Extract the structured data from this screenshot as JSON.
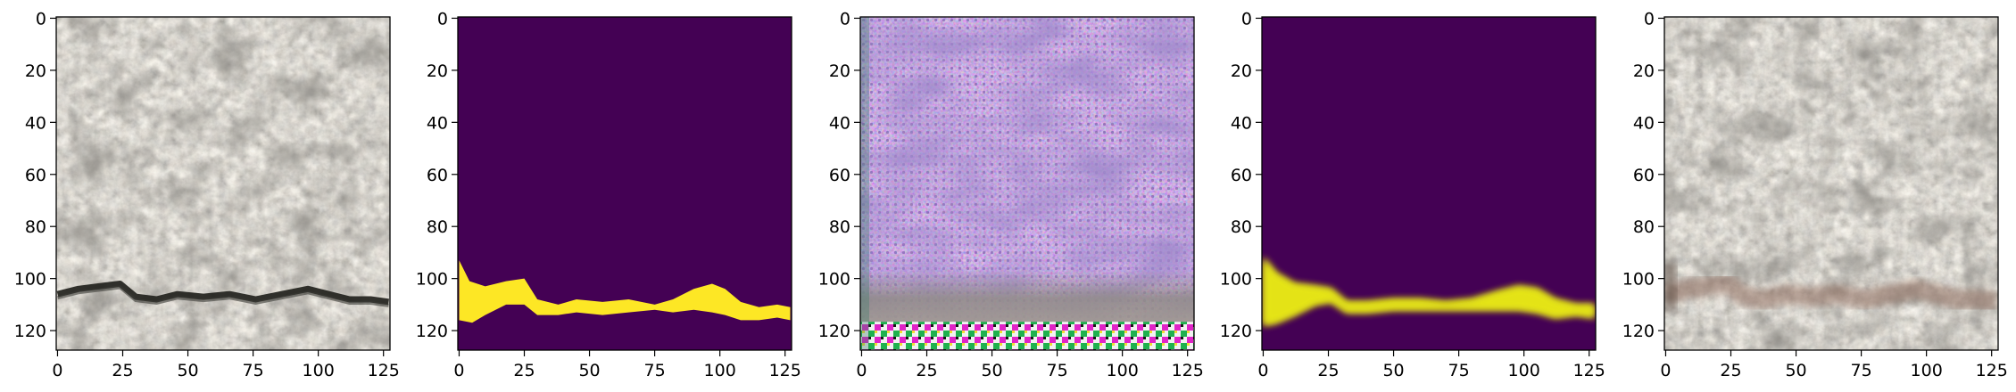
{
  "chart_data": [
    {
      "type": "image",
      "content": "grey concrete surface texture with a dark horizontal crack near y~107",
      "xlim": [
        0,
        127
      ],
      "ylim": [
        127,
        0
      ],
      "x_ticks": [
        0,
        25,
        50,
        75,
        100,
        125
      ],
      "y_ticks": [
        0,
        20,
        40,
        60,
        80,
        100,
        120
      ]
    },
    {
      "type": "heatmap",
      "content": "binary crack mask (yellow crack on purple background)",
      "xlim": [
        0,
        127
      ],
      "ylim": [
        127,
        0
      ],
      "x_ticks": [
        0,
        25,
        50,
        75,
        100,
        125
      ],
      "y_ticks": [
        0,
        20,
        40,
        60,
        80,
        100,
        120
      ],
      "background_color": "#440154",
      "crack_color": "#fde725",
      "crack_upper": [
        [
          0,
          93
        ],
        [
          4,
          101
        ],
        [
          10,
          103
        ],
        [
          18,
          101
        ],
        [
          25,
          100
        ],
        [
          30,
          108
        ],
        [
          38,
          110
        ],
        [
          45,
          108
        ],
        [
          55,
          109
        ],
        [
          65,
          108
        ],
        [
          75,
          110
        ],
        [
          82,
          108
        ],
        [
          90,
          104
        ],
        [
          97,
          102
        ],
        [
          102,
          104
        ],
        [
          108,
          109
        ],
        [
          115,
          111
        ],
        [
          122,
          110
        ],
        [
          127,
          111
        ]
      ],
      "crack_lower": [
        [
          0,
          116
        ],
        [
          5,
          117
        ],
        [
          10,
          114
        ],
        [
          18,
          110
        ],
        [
          25,
          110
        ],
        [
          30,
          114
        ],
        [
          38,
          114
        ],
        [
          45,
          113
        ],
        [
          55,
          114
        ],
        [
          65,
          113
        ],
        [
          75,
          112
        ],
        [
          82,
          113
        ],
        [
          90,
          112
        ],
        [
          97,
          113
        ],
        [
          102,
          114
        ],
        [
          108,
          116
        ],
        [
          115,
          116
        ],
        [
          122,
          115
        ],
        [
          127,
          116
        ]
      ]
    },
    {
      "type": "image",
      "content": "generated purple/magenta noisy texture with grey band and colourful checkerboard artifacts at bottom",
      "xlim": [
        0,
        127
      ],
      "ylim": [
        127,
        0
      ],
      "x_ticks": [
        0,
        25,
        50,
        75,
        100,
        125
      ],
      "y_ticks": [
        0,
        20,
        40,
        60,
        80,
        100,
        120
      ]
    },
    {
      "type": "heatmap",
      "content": "smooth predicted crack probability map (yellow band on purple background)",
      "xlim": [
        0,
        127
      ],
      "ylim": [
        127,
        0
      ],
      "x_ticks": [
        0,
        25,
        50,
        75,
        100,
        125
      ],
      "y_ticks": [
        0,
        20,
        40,
        60,
        80,
        100,
        120
      ],
      "background_color": "#440154",
      "crack_color": "#dde318",
      "crack_upper": [
        [
          0,
          92
        ],
        [
          5,
          98
        ],
        [
          12,
          102
        ],
        [
          20,
          103
        ],
        [
          26,
          104
        ],
        [
          32,
          109
        ],
        [
          40,
          109
        ],
        [
          50,
          108
        ],
        [
          60,
          108
        ],
        [
          70,
          109
        ],
        [
          80,
          108
        ],
        [
          90,
          105
        ],
        [
          98,
          103
        ],
        [
          105,
          104
        ],
        [
          112,
          108
        ],
        [
          120,
          110
        ],
        [
          127,
          110
        ]
      ],
      "crack_lower": [
        [
          0,
          118
        ],
        [
          5,
          117
        ],
        [
          12,
          114
        ],
        [
          20,
          110
        ],
        [
          26,
          109
        ],
        [
          32,
          113
        ],
        [
          40,
          113
        ],
        [
          50,
          112
        ],
        [
          60,
          112
        ],
        [
          70,
          112
        ],
        [
          80,
          112
        ],
        [
          90,
          112
        ],
        [
          98,
          112
        ],
        [
          105,
          113
        ],
        [
          112,
          115
        ],
        [
          120,
          114
        ],
        [
          127,
          115
        ]
      ]
    },
    {
      "type": "image",
      "content": "concrete texture with a faint reddish-brown blended crack band near y~107",
      "xlim": [
        0,
        127
      ],
      "ylim": [
        127,
        0
      ],
      "x_ticks": [
        0,
        25,
        50,
        75,
        100,
        125
      ],
      "y_ticks": [
        0,
        20,
        40,
        60,
        80,
        100,
        120
      ]
    }
  ],
  "colors": {
    "axis": "#000000",
    "viridis_dark": "#440154",
    "viridis_yellow": "#fde725",
    "concrete_base": "#b7b2a8",
    "generated_base": "#9d7fc6"
  }
}
